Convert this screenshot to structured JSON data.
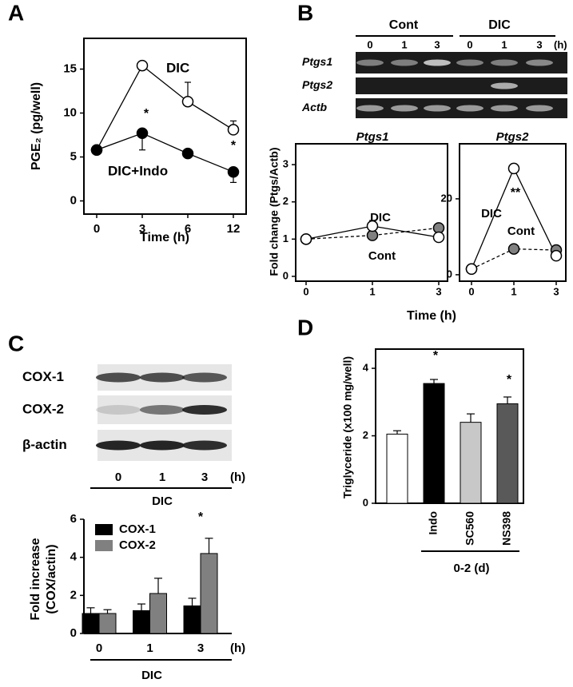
{
  "panels": [
    "A",
    "B",
    "C",
    "D"
  ],
  "gels": [
    {
      "groups": [
        "Cont",
        "DIC"
      ],
      "lanes": [
        "0",
        "1",
        "3",
        "0",
        "1",
        "3"
      ],
      "unit": "(h)",
      "rows": [
        "Ptgs1",
        "Ptgs2",
        "Actb"
      ]
    },
    {
      "rows": [
        "COX-1",
        "COX-2",
        "β-actin"
      ],
      "lanes": [
        "0",
        "1",
        "3"
      ],
      "unit": "(h)",
      "group": "DIC"
    }
  ],
  "chart_data": [
    {
      "type": "line",
      "xlabel": "Time (h)",
      "ylabel": "PGE₂ (pg/well)",
      "categories": [
        "0",
        "3",
        "6",
        "12"
      ],
      "ylim": [
        -1.5,
        18.5
      ],
      "yticks": [
        0,
        5,
        10,
        15
      ],
      "series": [
        {
          "name": "DIC",
          "color": "#000000",
          "marker_fill": "#ffffff",
          "line_style": "solid",
          "error_direction": "up",
          "values": [
            5.8,
            15.4,
            11.3,
            8.1
          ],
          "errors": [
            0.3,
            0.5,
            2.2,
            1.0
          ]
        },
        {
          "name": "DIC+Indo",
          "color": "#000000",
          "marker_fill": "#000000",
          "line_style": "solid",
          "error_direction": "down",
          "values": [
            5.8,
            7.7,
            5.4,
            3.3
          ],
          "errors": [
            0.3,
            1.9,
            0.5,
            1.2
          ]
        }
      ],
      "annotations": [
        "*",
        "*"
      ]
    },
    {
      "type": "line",
      "title": "Ptgs1",
      "ylabel": "Fold change (Ptgs/Actb)",
      "xlabel": "Time (h)",
      "categories": [
        "0",
        "1",
        "3"
      ],
      "ylim": [
        -0.13,
        3.56
      ],
      "yticks": [
        0,
        1,
        2,
        3
      ],
      "series": [
        {
          "name": "Cont",
          "color": "#000000",
          "marker_fill": "#808080",
          "line_style": "dashed",
          "error_direction": "up",
          "values": [
            1.0,
            1.1,
            1.3
          ],
          "errors": [
            0.05,
            0.15,
            0.1
          ]
        },
        {
          "name": "DIC",
          "color": "#000000",
          "marker_fill": "#ffffff",
          "line_style": "solid",
          "error_direction": "up",
          "values": [
            1.0,
            1.35,
            1.05
          ],
          "errors": [
            0.05,
            0.15,
            0.2
          ]
        }
      ]
    },
    {
      "type": "line",
      "title": "Ptgs2",
      "categories": [
        "0",
        "1",
        "3"
      ],
      "ylim": [
        -1.7,
        34.5
      ],
      "yticks": [
        0,
        20
      ],
      "series": [
        {
          "name": "Cont",
          "color": "#000000",
          "marker_fill": "#808080",
          "line_style": "dashed",
          "error_direction": "down",
          "values": [
            1.5,
            6.8,
            6.5
          ],
          "errors": [
            0.2,
            0.7,
            1.8
          ]
        },
        {
          "name": "DIC",
          "color": "#000000",
          "marker_fill": "#ffffff",
          "line_style": "solid",
          "error_direction": "up",
          "values": [
            1.5,
            28,
            5.0
          ],
          "errors": [
            0.3,
            1.2,
            1.8
          ]
        }
      ],
      "annotations": [
        "**"
      ]
    },
    {
      "type": "bar",
      "ylabel": [
        "Fold increase",
        "(COX/actin)"
      ],
      "categories": [
        "0",
        "1",
        "3"
      ],
      "x_unit": "(h)",
      "group_label": "DIC",
      "ylim": [
        0,
        6
      ],
      "yticks": [
        0,
        2,
        4,
        6
      ],
      "series": [
        {
          "name": "COX-1",
          "color": "#000000",
          "values": [
            1.05,
            1.2,
            1.45
          ],
          "errors": [
            0.3,
            0.35,
            0.4
          ]
        },
        {
          "name": "COX-2",
          "color": "#808080",
          "values": [
            1.05,
            2.1,
            4.2
          ],
          "errors": [
            0.2,
            0.8,
            0.8
          ]
        }
      ],
      "annotations": [
        "*"
      ]
    },
    {
      "type": "bar",
      "ylabel": "Triglyceride (x100 mg/well)",
      "categories": [
        null,
        "Indo",
        "SC560",
        "NS398"
      ],
      "group_label": "0-2 (d)",
      "ylim": [
        0,
        4.57
      ],
      "yticks": [
        0,
        2,
        4
      ],
      "colors": [
        "#ffffff",
        "#000000",
        "#c8c8c8",
        "#595959"
      ],
      "values": [
        2.05,
        3.55,
        2.4,
        2.95
      ],
      "errors": [
        0.1,
        0.12,
        0.25,
        0.2
      ],
      "annotations": [
        "*",
        "*"
      ]
    }
  ]
}
